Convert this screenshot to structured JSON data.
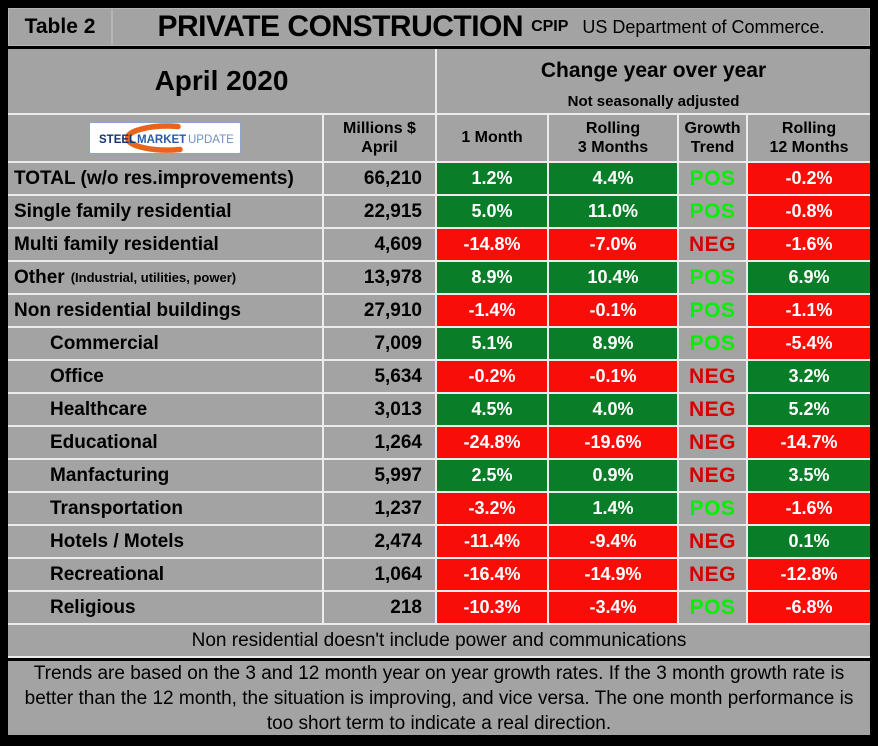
{
  "colors": {
    "table_gray": "#a3a3a3",
    "green_cell": "#0a7d28",
    "red_cell": "#f90d09",
    "pos_text": "#00f000",
    "neg_text": "#d40000",
    "logo_orange": "#e8641c",
    "logo_navy": "#16366b",
    "logo_blue": "#2a5ba9",
    "logo_light_blue": "#6f90c2"
  },
  "header": {
    "table_label": "Table 2",
    "title": "PRIVATE CONSTRUCTION",
    "cpip": "CPIP",
    "source": "US Department of Commerce."
  },
  "subheader": {
    "period": "April 2020",
    "change_title": "Change year over year",
    "change_subtitle": "Not seasonally adjusted"
  },
  "logo": {
    "steel": "STEEL",
    "market": "MARKET",
    "update": "UPDATE"
  },
  "columns": {
    "millions_line1": "Millions $",
    "millions_line2": "April",
    "one_month": "1 Month",
    "rolling3_line1": "Rolling",
    "rolling3_line2": "3 Months",
    "growth_line1": "Growth",
    "growth_line2": "Trend",
    "rolling12_line1": "Rolling",
    "rolling12_line2": "12 Months"
  },
  "notes": {
    "non_residential": "Non residential doesn't include power and communications",
    "trends": "Trends are based on the 3 and 12 month year on year growth rates. If the 3 month growth rate is better than the 12 month, the situation is improving, and vice versa. The one month performance is too short term to indicate a real direction."
  },
  "chart_data": {
    "type": "table",
    "title": "Table 2 - PRIVATE CONSTRUCTION (CPIP, US Department of Commerce)",
    "period": "April 2020",
    "columns": [
      "Millions $ April",
      "1 Month",
      "Rolling 3 Months",
      "Growth Trend",
      "Rolling 12 Months"
    ],
    "value_color_rule": "negative % = red fill, non-negative % = green fill; trend POS = bright green text, NEG = dark red text; all on gray table",
    "rows": [
      {
        "category": "TOTAL (w/o res.improvements)",
        "indent": false,
        "note": "",
        "millions": 66210,
        "one_month": 1.2,
        "rolling_3m": 4.4,
        "trend": "POS",
        "rolling_12m": -0.2
      },
      {
        "category": "Single family residential",
        "indent": false,
        "note": "",
        "millions": 22915,
        "one_month": 5.0,
        "rolling_3m": 11.0,
        "trend": "POS",
        "rolling_12m": -0.8
      },
      {
        "category": "Multi family residential",
        "indent": false,
        "note": "",
        "millions": 4609,
        "one_month": -14.8,
        "rolling_3m": -7.0,
        "trend": "NEG",
        "rolling_12m": -1.6
      },
      {
        "category": "Other",
        "indent": false,
        "note": "(Industrial, utilities, power)",
        "millions": 13978,
        "one_month": 8.9,
        "rolling_3m": 10.4,
        "trend": "POS",
        "rolling_12m": 6.9
      },
      {
        "category": "Non residential buildings",
        "indent": false,
        "note": "",
        "millions": 27910,
        "one_month": -1.4,
        "rolling_3m": -0.1,
        "trend": "POS",
        "rolling_12m": -1.1
      },
      {
        "category": "Commercial",
        "indent": true,
        "note": "",
        "millions": 7009,
        "one_month": 5.1,
        "rolling_3m": 8.9,
        "trend": "POS",
        "rolling_12m": -5.4
      },
      {
        "category": "Office",
        "indent": true,
        "note": "",
        "millions": 5634,
        "one_month": -0.2,
        "rolling_3m": -0.1,
        "trend": "NEG",
        "rolling_12m": 3.2
      },
      {
        "category": "Healthcare",
        "indent": true,
        "note": "",
        "millions": 3013,
        "one_month": 4.5,
        "rolling_3m": 4.0,
        "trend": "NEG",
        "rolling_12m": 5.2
      },
      {
        "category": "Educational",
        "indent": true,
        "note": "",
        "millions": 1264,
        "one_month": -24.8,
        "rolling_3m": -19.6,
        "trend": "NEG",
        "rolling_12m": -14.7
      },
      {
        "category": "Manfacturing",
        "indent": true,
        "note": "",
        "millions": 5997,
        "one_month": 2.5,
        "rolling_3m": 0.9,
        "trend": "NEG",
        "rolling_12m": 3.5
      },
      {
        "category": "Transportation",
        "indent": true,
        "note": "",
        "millions": 1237,
        "one_month": -3.2,
        "rolling_3m": 1.4,
        "trend": "POS",
        "rolling_12m": -1.6
      },
      {
        "category": "Hotels / Motels",
        "indent": true,
        "note": "",
        "millions": 2474,
        "one_month": -11.4,
        "rolling_3m": -9.4,
        "trend": "NEG",
        "rolling_12m": 0.1
      },
      {
        "category": "Recreational",
        "indent": true,
        "note": "",
        "millions": 1064,
        "one_month": -16.4,
        "rolling_3m": -14.9,
        "trend": "NEG",
        "rolling_12m": -12.8
      },
      {
        "category": "Religious",
        "indent": true,
        "note": "",
        "millions": 218,
        "one_month": -10.3,
        "rolling_3m": -3.4,
        "trend": "POS",
        "rolling_12m": -6.8
      }
    ]
  }
}
